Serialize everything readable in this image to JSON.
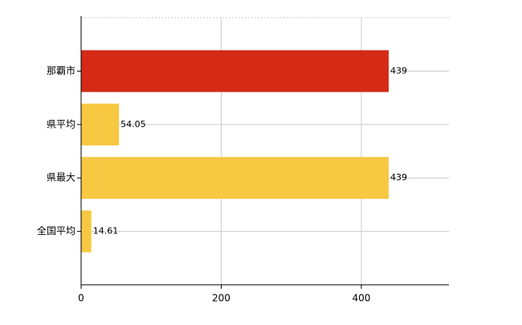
{
  "chart_data": {
    "type": "hbar",
    "categories": [
      "那覇市",
      "県平均",
      "県最大",
      "全国平均"
    ],
    "values": [
      439,
      54.05,
      439,
      14.61
    ],
    "colors": [
      "#d42a16",
      "#f7c842",
      "#f7c842",
      "#f7c842"
    ],
    "xlim": [
      0,
      525
    ],
    "xticks": [
      0,
      200,
      400
    ],
    "grid": true,
    "data_labels": true
  }
}
